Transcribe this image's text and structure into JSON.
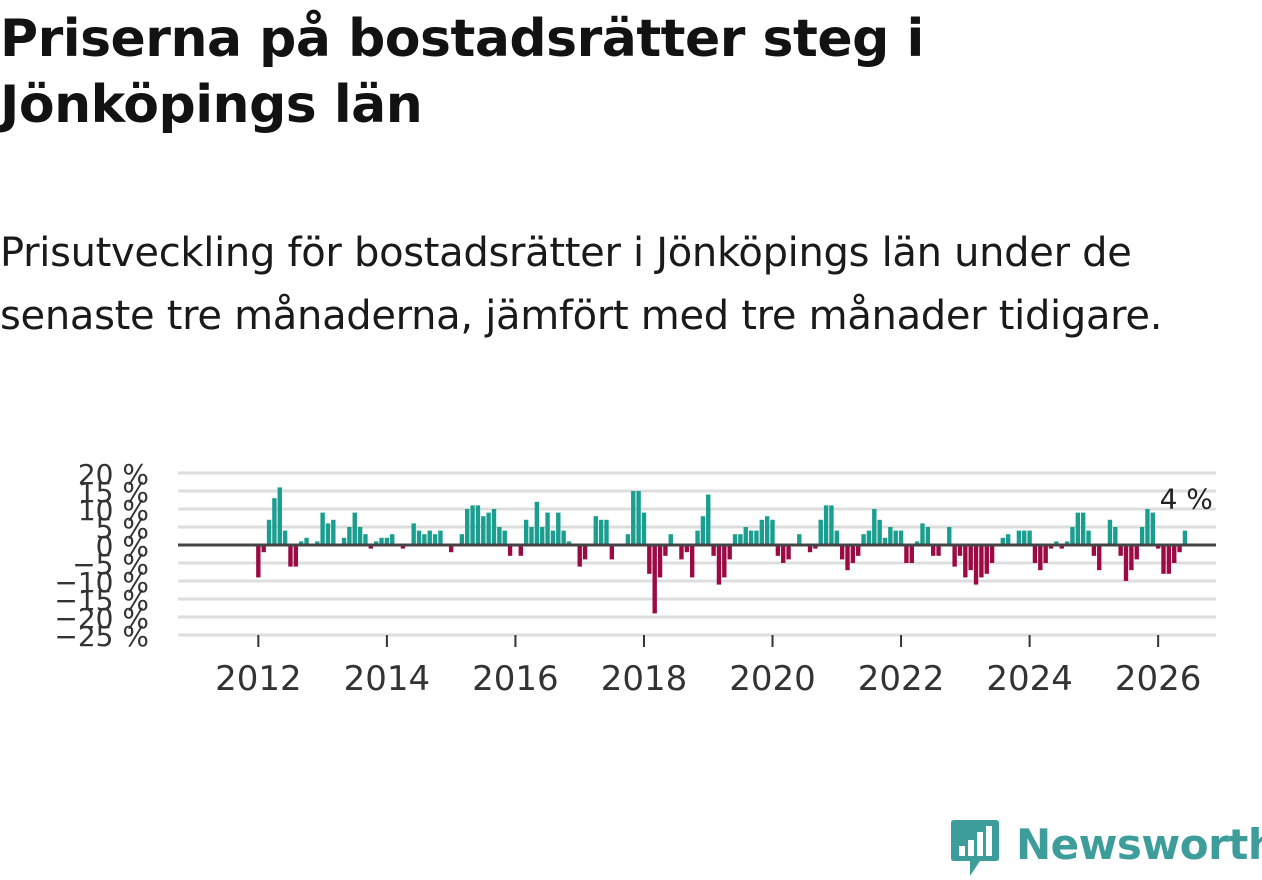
{
  "header": {
    "title": "Priserna på bostadsrätter steg i Jönköpings län",
    "subtitle": "Prisutveckling för bostadsrätter i Jönköpings län under de senaste tre månaderna, jämfört med tre månader tidigare."
  },
  "brand": {
    "name": "Newsworthy",
    "icon": "newsworthy-logo-icon",
    "color": "#3c9d9a"
  },
  "colors": {
    "positive": "#1a9e8f",
    "negative": "#9b0a44",
    "grid": "#dddddd",
    "zero_line": "#444444",
    "tick_text": "#333333"
  },
  "chart_data": {
    "type": "bar",
    "title": "Priserna på bostadsrätter steg i Jönköpings län",
    "xlabel": "",
    "ylabel": "",
    "ylim": [
      -25,
      20
    ],
    "xlim": [
      2010.75,
      2026.9
    ],
    "y_ticks": [
      20,
      15,
      10,
      5,
      0,
      -5,
      -10,
      -15,
      -20,
      -25
    ],
    "y_tick_labels": [
      "20 %",
      "15 %",
      "10 %",
      "5 %",
      "0 %",
      "−5 %",
      "−10 %",
      "−15 %",
      "−20 %",
      "−25 %"
    ],
    "x_ticks": [
      2012,
      2014,
      2016,
      2018,
      2020,
      2022,
      2024,
      2026
    ],
    "x_tick_labels": [
      "2012",
      "2014",
      "2016",
      "2018",
      "2020",
      "2022",
      "2024",
      "2026"
    ],
    "grid": true,
    "start": 2012.0,
    "step_months": 1,
    "annotation": {
      "label": "4 %",
      "value": 4
    },
    "values": [
      -9,
      -2,
      7,
      13,
      16,
      4,
      -6,
      -6,
      1,
      2,
      0,
      1,
      9,
      6,
      7,
      0,
      2,
      5,
      9,
      5,
      3,
      -1,
      1,
      2,
      2,
      3,
      0,
      -1,
      0,
      6,
      4,
      3,
      4,
      3,
      4,
      0,
      -2,
      0,
      3,
      10,
      11,
      11,
      8,
      9,
      10,
      5,
      4,
      -3,
      0,
      -3,
      7,
      5,
      12,
      5,
      9,
      4,
      9,
      4,
      1,
      0,
      -6,
      -4,
      0,
      8,
      7,
      7,
      -4,
      0,
      0,
      3,
      15,
      15,
      9,
      -8,
      -19,
      -9,
      -3,
      3,
      0,
      -4,
      -2,
      -9,
      4,
      8,
      14,
      -3,
      -11,
      -9,
      -4,
      3,
      3,
      5,
      4,
      4,
      7,
      8,
      7,
      -3,
      -5,
      -4,
      0,
      3,
      0,
      -2,
      -1,
      7,
      11,
      11,
      4,
      -4,
      -7,
      -5,
      -3,
      3,
      4,
      10,
      7,
      2,
      5,
      4,
      4,
      -5,
      -5,
      1,
      6,
      5,
      -3,
      -3,
      0,
      5,
      -6,
      -3,
      -9,
      -7,
      -11,
      -9,
      -8,
      -5,
      0,
      2,
      3,
      0,
      4,
      4,
      4,
      -5,
      -7,
      -5,
      -1,
      1,
      -1,
      1,
      5,
      9,
      9,
      4,
      -3,
      -7,
      0,
      7,
      5,
      -3,
      -10,
      -7,
      -4,
      5,
      10,
      9,
      -1,
      -8,
      -8,
      -5,
      -2,
      4
    ]
  }
}
